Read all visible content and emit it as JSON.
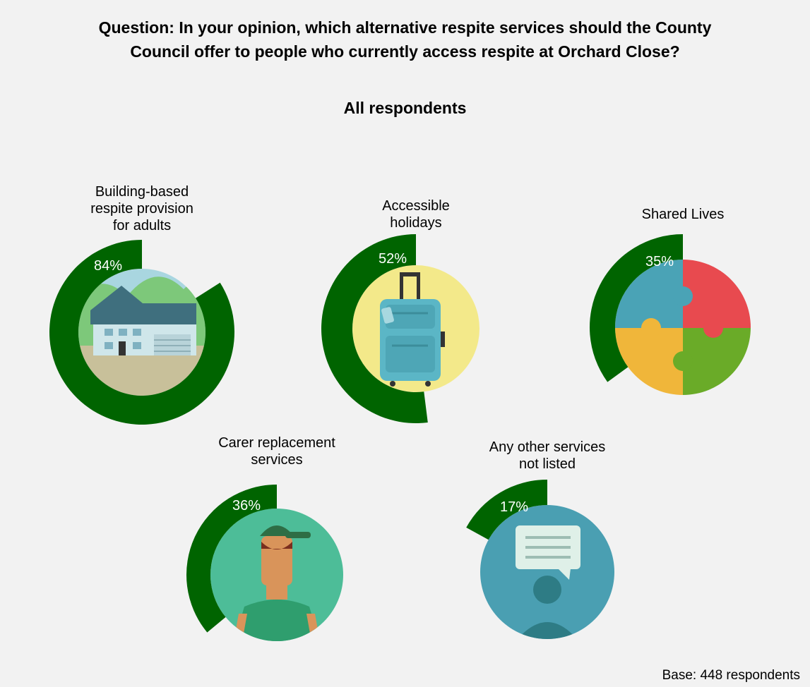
{
  "title_line1": "Question: In your opinion, which alternative respite services should the County",
  "title_line2": "Council offer to people who currently access respite at Orchard Close?",
  "subtitle": "All respondents",
  "base_note": "Base: 448 respondents",
  "colors": {
    "ring": "#006400",
    "background": "#f2f2f2"
  },
  "chart_data": {
    "type": "radial-progress",
    "title": "Question: In your opinion, which alternative respite services should the County Council offer to people who currently access respite at Orchard Close?",
    "subtitle": "All respondents",
    "unit": "%",
    "items": [
      {
        "key": "building",
        "label_lines": [
          "Building-based",
          "respite provision",
          "for adults"
        ],
        "value": 84,
        "value_label": "84%",
        "icon": "house-icon"
      },
      {
        "key": "holidays",
        "label_lines": [
          "Accessible",
          "holidays"
        ],
        "value": 52,
        "value_label": "52%",
        "icon": "suitcase-icon"
      },
      {
        "key": "shared",
        "label_lines": [
          "Shared Lives"
        ],
        "value": 35,
        "value_label": "35%",
        "icon": "puzzle-icon"
      },
      {
        "key": "carer",
        "label_lines": [
          "Carer replacement",
          "services"
        ],
        "value": 36,
        "value_label": "36%",
        "icon": "person-cap-icon"
      },
      {
        "key": "other",
        "label_lines": [
          "Any other services",
          "not listed"
        ],
        "value": 17,
        "value_label": "17%",
        "icon": "speech-bubble-icon"
      }
    ]
  }
}
